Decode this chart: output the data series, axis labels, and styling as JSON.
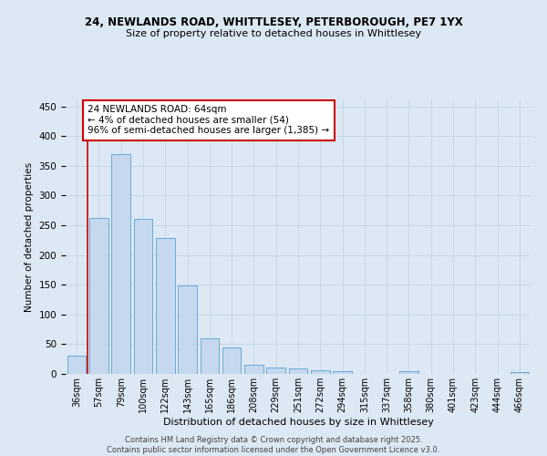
{
  "title_line1": "24, NEWLANDS ROAD, WHITTLESEY, PETERBOROUGH, PE7 1YX",
  "title_line2": "Size of property relative to detached houses in Whittlesey",
  "xlabel": "Distribution of detached houses by size in Whittlesey",
  "ylabel": "Number of detached properties",
  "categories": [
    "36sqm",
    "57sqm",
    "79sqm",
    "100sqm",
    "122sqm",
    "143sqm",
    "165sqm",
    "186sqm",
    "208sqm",
    "229sqm",
    "251sqm",
    "272sqm",
    "294sqm",
    "315sqm",
    "337sqm",
    "358sqm",
    "380sqm",
    "401sqm",
    "423sqm",
    "444sqm",
    "466sqm"
  ],
  "values": [
    30,
    262,
    370,
    260,
    228,
    148,
    60,
    45,
    16,
    10,
    9,
    6,
    5,
    0,
    0,
    4,
    0,
    0,
    0,
    0,
    3
  ],
  "bar_color": "#c5d8ee",
  "bar_edge_color": "#6aaad4",
  "grid_color": "#c8d8e8",
  "background_color": "#dce8f4",
  "vline_x": 0.5,
  "vline_color": "#cc0000",
  "annotation_text": "24 NEWLANDS ROAD: 64sqm\n← 4% of detached houses are smaller (54)\n96% of semi-detached houses are larger (1,385) →",
  "annotation_box_color": "#cc0000",
  "footer_text": "Contains HM Land Registry data © Crown copyright and database right 2025.\nContains public sector information licensed under the Open Government Licence v3.0.",
  "ylim": [
    0,
    460
  ],
  "yticks": [
    0,
    50,
    100,
    150,
    200,
    250,
    300,
    350,
    400,
    450
  ]
}
